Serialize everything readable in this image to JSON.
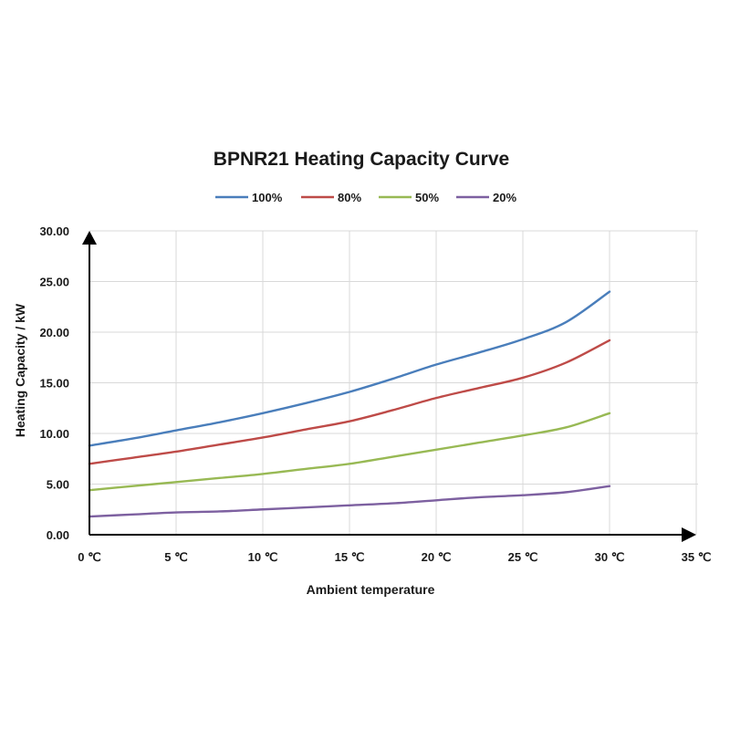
{
  "chart_data": {
    "type": "line",
    "title": "BPNR21 Heating Capacity Curve",
    "xlabel": "Ambient temperature",
    "ylabel": "Heating Capacity / kW",
    "xlim": [
      0,
      35
    ],
    "ylim": [
      0,
      30
    ],
    "x_ticks": [
      0,
      5,
      10,
      15,
      20,
      25,
      30,
      35
    ],
    "x_tick_labels": [
      "0 ℃",
      "5 ℃",
      "10 ℃",
      "15 ℃",
      "20 ℃",
      "25 ℃",
      "30 ℃",
      "35 ℃"
    ],
    "y_ticks": [
      0,
      5,
      10,
      15,
      20,
      25,
      30
    ],
    "y_tick_labels": [
      "0.00",
      "5.00",
      "10.00",
      "15.00",
      "20.00",
      "25.00",
      "30.00"
    ],
    "grid": true,
    "legend_position": "top-center",
    "x": [
      0,
      2.5,
      5,
      7.5,
      10,
      12.5,
      15,
      17.5,
      20,
      22.5,
      25,
      27.5,
      30
    ],
    "series": [
      {
        "name": "100%",
        "color": "#4a7ebb",
        "values": [
          8.8,
          9.5,
          10.3,
          11.1,
          12.0,
          13.0,
          14.1,
          15.4,
          16.8,
          18.0,
          19.3,
          21.0,
          24.0
        ]
      },
      {
        "name": "80%",
        "color": "#be4b48",
        "values": [
          7.0,
          7.6,
          8.2,
          8.9,
          9.6,
          10.4,
          11.2,
          12.3,
          13.5,
          14.5,
          15.5,
          17.0,
          19.2
        ]
      },
      {
        "name": "50%",
        "color": "#98b954",
        "values": [
          4.4,
          4.8,
          5.2,
          5.6,
          6.0,
          6.5,
          7.0,
          7.7,
          8.4,
          9.1,
          9.8,
          10.6,
          12.0
        ]
      },
      {
        "name": "20%",
        "color": "#7d60a0",
        "values": [
          1.8,
          2.0,
          2.2,
          2.3,
          2.5,
          2.7,
          2.9,
          3.1,
          3.4,
          3.7,
          3.9,
          4.2,
          4.8
        ]
      }
    ]
  }
}
